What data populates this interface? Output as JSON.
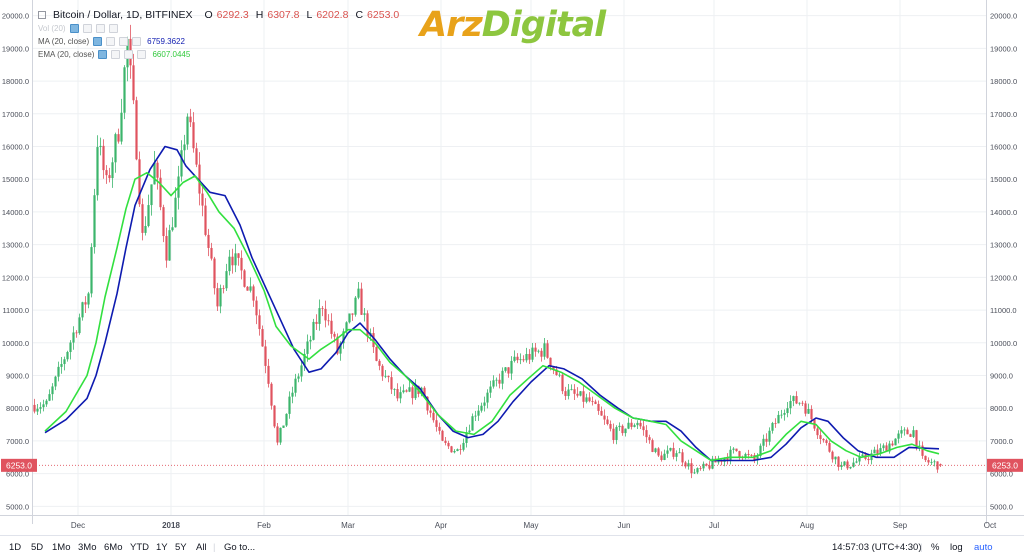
{
  "header": {
    "symbol_title": "Bitcoin / Dollar, 1D, BITFINEX",
    "ohlc": [
      {
        "key": "O",
        "value": "6292.3"
      },
      {
        "key": "H",
        "value": "6307.8"
      },
      {
        "key": "L",
        "value": "6202.8"
      },
      {
        "key": "C",
        "value": "6253.0"
      }
    ],
    "volume_label": "Vol (20)",
    "ma_label": "MA (20, close)",
    "ma_value": "6759.3622",
    "ema_label": "EMA (20, close)",
    "ema_value": "6607.0445"
  },
  "watermark": {
    "part1": "Arz",
    "part2": "Digital",
    "color1": "#e8a21a",
    "color2": "#8dc63f"
  },
  "price_tag": "6253.0",
  "bottom_bar": {
    "timeframes": [
      "1D",
      "5D",
      "1Mo",
      "3Mo",
      "6Mo",
      "YTD",
      "1Y",
      "5Y",
      "All"
    ],
    "goto": "Go to...",
    "clock": "14:57:03 (UTC+4:30)",
    "percent": "%",
    "log": "log",
    "auto": "auto"
  },
  "colors": {
    "up": "#3cb56c",
    "down": "#e0535f",
    "ma": "#0e1bb0",
    "ema": "#32e03f",
    "price_tag": "#e0535f",
    "grid": "#eef0f3"
  },
  "chart_data": {
    "type": "line",
    "title": "Bitcoin / Dollar, 1D, BITFINEX",
    "xlabel": "",
    "ylabel": "",
    "ylim": [
      4750,
      20500
    ],
    "x_ticks": [
      "Dec",
      "2018",
      "Feb",
      "Mar",
      "Apr",
      "May",
      "Jun",
      "Jul",
      "Aug",
      "Sep",
      "Oct"
    ],
    "y_ticks": [
      "5000.0",
      "6000.0",
      "7000.0",
      "8000.0",
      "9000.0",
      "10000.0",
      "11000.0",
      "12000.0",
      "13000.0",
      "14000.0",
      "15000.0",
      "16000.0",
      "17000.0",
      "18000.0",
      "19000.0",
      "20000.0"
    ],
    "grid": true,
    "candlestick_close_path": [
      [
        "2017-11-20",
        8100
      ],
      [
        "2017-11-27",
        9800
      ],
      [
        "2017-12-04",
        11500
      ],
      [
        "2017-12-07",
        16200
      ],
      [
        "2017-12-10",
        14800
      ],
      [
        "2017-12-14",
        16500
      ],
      [
        "2017-12-17",
        19200
      ],
      [
        "2017-12-20",
        16000
      ],
      [
        "2017-12-22",
        13200
      ],
      [
        "2017-12-26",
        15400
      ],
      [
        "2017-12-30",
        12800
      ],
      [
        "2018-01-03",
        14800
      ],
      [
        "2018-01-06",
        17000
      ],
      [
        "2018-01-10",
        14700
      ],
      [
        "2018-01-16",
        11100
      ],
      [
        "2018-01-20",
        12800
      ],
      [
        "2018-01-28",
        11500
      ],
      [
        "2018-02-02",
        8900
      ],
      [
        "2018-02-05",
        6900
      ],
      [
        "2018-02-10",
        8500
      ],
      [
        "2018-02-20",
        11200
      ],
      [
        "2018-02-25",
        9700
      ],
      [
        "2018-03-04",
        11400
      ],
      [
        "2018-03-10",
        9400
      ],
      [
        "2018-03-17",
        8300
      ],
      [
        "2018-03-25",
        8600
      ],
      [
        "2018-04-01",
        6900
      ],
      [
        "2018-04-06",
        6700
      ],
      [
        "2018-04-12",
        7900
      ],
      [
        "2018-04-20",
        8900
      ],
      [
        "2018-04-25",
        9400
      ],
      [
        "2018-05-05",
        9800
      ],
      [
        "2018-05-12",
        8500
      ],
      [
        "2018-05-20",
        8200
      ],
      [
        "2018-05-28",
        7200
      ],
      [
        "2018-06-05",
        7600
      ],
      [
        "2018-06-12",
        6500
      ],
      [
        "2018-06-18",
        6700
      ],
      [
        "2018-06-24",
        6000
      ],
      [
        "2018-06-30",
        6300
      ],
      [
        "2018-07-08",
        6700
      ],
      [
        "2018-07-14",
        6400
      ],
      [
        "2018-07-20",
        7400
      ],
      [
        "2018-07-25",
        8200
      ],
      [
        "2018-07-30",
        8200
      ],
      [
        "2018-08-06",
        7000
      ],
      [
        "2018-08-12",
        6200
      ],
      [
        "2018-08-18",
        6400
      ],
      [
        "2018-08-25",
        6700
      ],
      [
        "2018-09-01",
        7200
      ],
      [
        "2018-09-05",
        7300
      ],
      [
        "2018-09-08",
        6400
      ],
      [
        "2018-09-14",
        6253
      ]
    ],
    "series": [
      {
        "name": "MA (20, close)",
        "color": "#0e1bb0",
        "points": [
          [
            "2017-11-20",
            7250
          ],
          [
            "2017-11-27",
            7650
          ],
          [
            "2017-12-04",
            8300
          ],
          [
            "2017-12-07",
            9000
          ],
          [
            "2017-12-10",
            10000
          ],
          [
            "2017-12-14",
            11500
          ],
          [
            "2017-12-17",
            12900
          ],
          [
            "2017-12-20",
            14200
          ],
          [
            "2017-12-25",
            15300
          ],
          [
            "2017-12-30",
            16000
          ],
          [
            "2018-01-03",
            15900
          ],
          [
            "2018-01-06",
            15400
          ],
          [
            "2018-01-10",
            15000
          ],
          [
            "2018-01-14",
            14600
          ],
          [
            "2018-01-19",
            14500
          ],
          [
            "2018-01-24",
            13600
          ],
          [
            "2018-01-28",
            12600
          ],
          [
            "2018-02-02",
            11600
          ],
          [
            "2018-02-06",
            10800
          ],
          [
            "2018-02-11",
            9800
          ],
          [
            "2018-02-16",
            9100
          ],
          [
            "2018-02-20",
            9200
          ],
          [
            "2018-02-25",
            9700
          ],
          [
            "2018-03-01",
            10300
          ],
          [
            "2018-03-05",
            10600
          ],
          [
            "2018-03-10",
            10100
          ],
          [
            "2018-03-15",
            9500
          ],
          [
            "2018-03-20",
            9000
          ],
          [
            "2018-03-25",
            8600
          ],
          [
            "2018-03-31",
            7800
          ],
          [
            "2018-04-05",
            7300
          ],
          [
            "2018-04-10",
            7100
          ],
          [
            "2018-04-15",
            7200
          ],
          [
            "2018-04-20",
            7600
          ],
          [
            "2018-04-25",
            8200
          ],
          [
            "2018-05-01",
            8800
          ],
          [
            "2018-05-07",
            9300
          ],
          [
            "2018-05-12",
            9200
          ],
          [
            "2018-05-18",
            8900
          ],
          [
            "2018-05-24",
            8400
          ],
          [
            "2018-05-30",
            8000
          ],
          [
            "2018-06-04",
            7700
          ],
          [
            "2018-06-10",
            7600
          ],
          [
            "2018-06-15",
            7600
          ],
          [
            "2018-06-20",
            7300
          ],
          [
            "2018-06-25",
            6800
          ],
          [
            "2018-06-30",
            6400
          ],
          [
            "2018-07-06",
            6400
          ],
          [
            "2018-07-14",
            6400
          ],
          [
            "2018-07-20",
            6500
          ],
          [
            "2018-07-25",
            6900
          ],
          [
            "2018-07-30",
            7400
          ],
          [
            "2018-08-04",
            7700
          ],
          [
            "2018-08-08",
            7600
          ],
          [
            "2018-08-13",
            7100
          ],
          [
            "2018-08-18",
            6700
          ],
          [
            "2018-08-24",
            6500
          ],
          [
            "2018-08-30",
            6500
          ],
          [
            "2018-09-04",
            6800
          ],
          [
            "2018-09-14",
            6759
          ]
        ]
      },
      {
        "name": "EMA (20, close)",
        "color": "#32e03f",
        "points": [
          [
            "2017-11-20",
            7300
          ],
          [
            "2017-11-27",
            7900
          ],
          [
            "2017-12-04",
            9000
          ],
          [
            "2017-12-07",
            10000
          ],
          [
            "2017-12-10",
            11400
          ],
          [
            "2017-12-14",
            12900
          ],
          [
            "2017-12-17",
            14100
          ],
          [
            "2017-12-20",
            15000
          ],
          [
            "2017-12-24",
            15200
          ],
          [
            "2017-12-28",
            14900
          ],
          [
            "2018-01-01",
            14500
          ],
          [
            "2018-01-05",
            14900
          ],
          [
            "2018-01-09",
            15100
          ],
          [
            "2018-01-13",
            14600
          ],
          [
            "2018-01-17",
            14000
          ],
          [
            "2018-01-22",
            13500
          ],
          [
            "2018-01-27",
            12600
          ],
          [
            "2018-02-01",
            11600
          ],
          [
            "2018-02-05",
            10500
          ],
          [
            "2018-02-10",
            9900
          ],
          [
            "2018-02-16",
            9500
          ],
          [
            "2018-02-20",
            9800
          ],
          [
            "2018-02-25",
            10100
          ],
          [
            "2018-03-01",
            10400
          ],
          [
            "2018-03-05",
            10400
          ],
          [
            "2018-03-10",
            10000
          ],
          [
            "2018-03-15",
            9400
          ],
          [
            "2018-03-20",
            9000
          ],
          [
            "2018-03-25",
            8500
          ],
          [
            "2018-03-31",
            7800
          ],
          [
            "2018-04-06",
            7300
          ],
          [
            "2018-04-12",
            7200
          ],
          [
            "2018-04-18",
            7600
          ],
          [
            "2018-04-24",
            8400
          ],
          [
            "2018-04-30",
            8900
          ],
          [
            "2018-05-05",
            9300
          ],
          [
            "2018-05-11",
            9100
          ],
          [
            "2018-05-17",
            8800
          ],
          [
            "2018-05-23",
            8400
          ],
          [
            "2018-05-29",
            8000
          ],
          [
            "2018-06-04",
            7700
          ],
          [
            "2018-06-10",
            7600
          ],
          [
            "2018-06-15",
            7500
          ],
          [
            "2018-06-20",
            7000
          ],
          [
            "2018-06-25",
            6700
          ],
          [
            "2018-06-30",
            6400
          ],
          [
            "2018-07-06",
            6500
          ],
          [
            "2018-07-14",
            6500
          ],
          [
            "2018-07-20",
            6700
          ],
          [
            "2018-07-25",
            7200
          ],
          [
            "2018-07-30",
            7600
          ],
          [
            "2018-08-04",
            7500
          ],
          [
            "2018-08-09",
            7000
          ],
          [
            "2018-08-14",
            6700
          ],
          [
            "2018-08-19",
            6500
          ],
          [
            "2018-08-25",
            6600
          ],
          [
            "2018-08-31",
            6800
          ],
          [
            "2018-09-05",
            6900
          ],
          [
            "2018-09-10",
            6700
          ],
          [
            "2018-09-14",
            6607
          ]
        ]
      }
    ]
  }
}
